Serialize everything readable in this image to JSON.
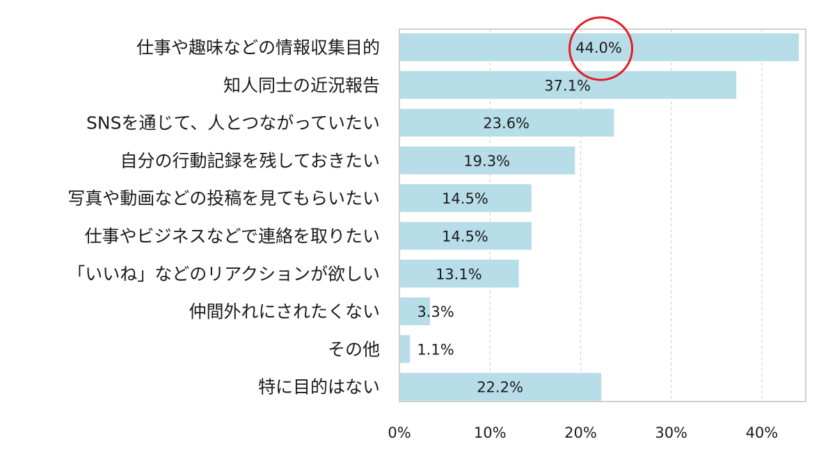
{
  "chart_data": {
    "type": "bar",
    "orientation": "horizontal",
    "categories": [
      "仕事や趣味などの情報収集目的",
      "知人同士の近況報告",
      "SNSを通じて、人とつながっていたい",
      "自分の行動記録を残しておきたい",
      "写真や動画などの投稿を見てもらいたい",
      "仕事やビジネスなどで連絡を取りたい",
      "「いいね」などのリアクションが欲しい",
      "仲間外れにされたくない",
      "その他",
      "特に目的はない"
    ],
    "values": [
      44.0,
      37.1,
      23.6,
      19.3,
      14.5,
      14.5,
      13.1,
      3.3,
      1.1,
      22.2
    ],
    "data_labels": [
      "44.0%",
      "37.1%",
      "23.6%",
      "19.3%",
      "14.5%",
      "14.5%",
      "13.1%",
      "3.3%",
      "1.1%",
      "22.2%"
    ],
    "xlim": [
      0,
      45
    ],
    "ticks": [
      0,
      10,
      20,
      30,
      40
    ],
    "tick_labels": [
      "0%",
      "10%",
      "20%",
      "30%",
      "40%"
    ],
    "grid": "vertical dashed",
    "legend": "none",
    "highlight_circle_index": 0,
    "colors": {
      "bar": "#b7dde8",
      "grid": "#d4d4d4",
      "frame": "#bfbfbf",
      "highlight": "#e31b23",
      "text": "#1a1a1a"
    }
  }
}
